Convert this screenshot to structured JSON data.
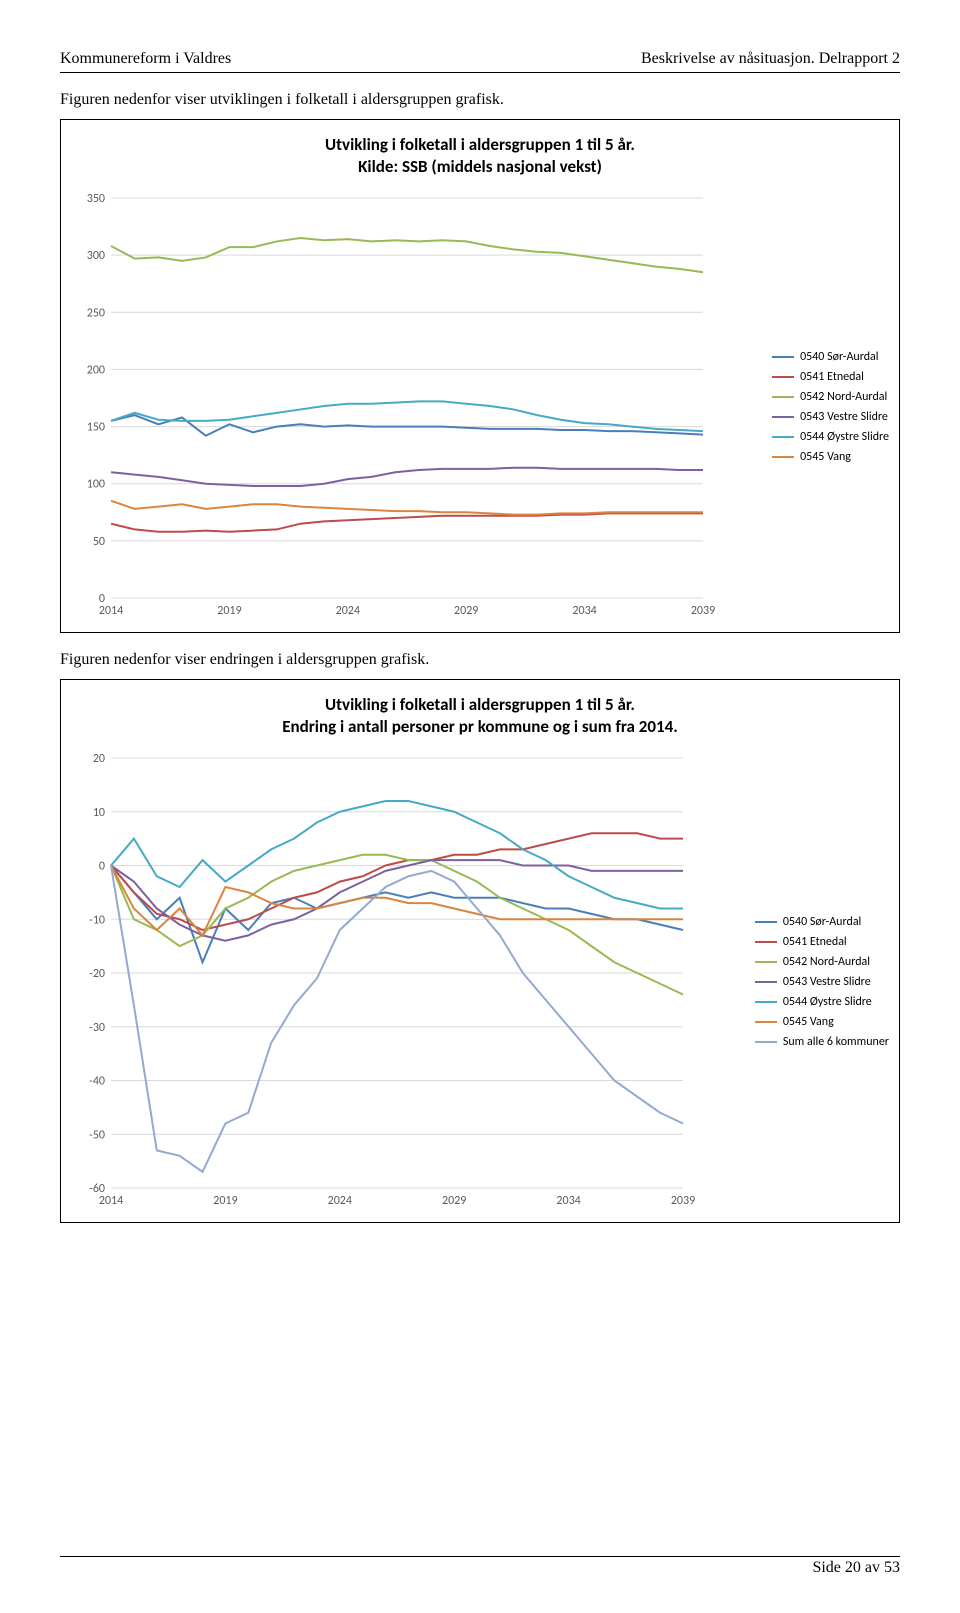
{
  "header": {
    "left": "Kommunereform i Valdres",
    "right": "Beskrivelse av nåsituasjon. Delrapport 2"
  },
  "para1": "Figuren nedenfor viser utviklingen i folketall i aldersgruppen grafisk.",
  "para2": "Figuren nedenfor viser endringen i aldersgruppen grafisk.",
  "footer": "Side 20 av 53",
  "colors": {
    "grid": "#d9d9d9",
    "axis_text": "#595959",
    "sor_aurdal": "#4a7ebb",
    "etnedal": "#be4b48",
    "nord_aurdal": "#98b954",
    "vestre_slidre": "#7d60a0",
    "oystre_slidre": "#46aac5",
    "vang": "#db843d",
    "sum": "#93a9cf",
    "background": "#ffffff"
  },
  "legend_labels": {
    "sor_aurdal": "0540 Sør-Aurdal",
    "etnedal": "0541 Etnedal",
    "nord_aurdal": "0542 Nord-Aurdal",
    "vestre_slidre": "0543 Vestre Slidre",
    "oystre_slidre": "0544 Øystre Slidre",
    "vang": "0545 Vang",
    "sum": "Sum alle 6 kommuner"
  },
  "chart1": {
    "type": "line",
    "title": "Utvikling i folketall i aldersgruppen 1 til 5 år.\nKilde: SSB (middels nasjonal vekst)",
    "x_years": [
      2014,
      2015,
      2016,
      2017,
      2018,
      2019,
      2020,
      2021,
      2022,
      2023,
      2024,
      2025,
      2026,
      2027,
      2028,
      2029,
      2030,
      2031,
      2032,
      2033,
      2034,
      2035,
      2036,
      2037,
      2038,
      2039
    ],
    "x_ticks": [
      2014,
      2019,
      2024,
      2029,
      2034,
      2039
    ],
    "ylim": [
      0,
      350
    ],
    "ytick_step": 50,
    "title_fontsize": 17,
    "label_fontsize": 12,
    "series": {
      "sor_aurdal": [
        155,
        160,
        152,
        158,
        142,
        152,
        145,
        150,
        152,
        150,
        151,
        150,
        150,
        150,
        150,
        149,
        148,
        148,
        148,
        147,
        147,
        146,
        146,
        145,
        144,
        143
      ],
      "etnedal": [
        65,
        60,
        58,
        58,
        59,
        58,
        59,
        60,
        65,
        67,
        68,
        69,
        70,
        71,
        72,
        72,
        72,
        72,
        72,
        73,
        73,
        74,
        74,
        74,
        74,
        74
      ],
      "nord_aurdal": [
        308,
        297,
        298,
        295,
        298,
        307,
        307,
        312,
        315,
        313,
        314,
        312,
        313,
        312,
        313,
        312,
        308,
        305,
        303,
        302,
        299,
        296,
        293,
        290,
        288,
        285
      ],
      "vestre_slidre": [
        110,
        108,
        106,
        103,
        100,
        99,
        98,
        98,
        98,
        100,
        104,
        106,
        110,
        112,
        113,
        113,
        113,
        114,
        114,
        113,
        113,
        113,
        113,
        113,
        112,
        112
      ],
      "oystre_slidre": [
        155,
        162,
        156,
        155,
        155,
        156,
        159,
        162,
        165,
        168,
        170,
        170,
        171,
        172,
        172,
        170,
        168,
        165,
        160,
        156,
        153,
        152,
        150,
        148,
        147,
        146
      ],
      "vang": [
        85,
        78,
        80,
        82,
        78,
        80,
        82,
        82,
        80,
        79,
        78,
        77,
        76,
        76,
        75,
        75,
        74,
        73,
        73,
        74,
        74,
        75,
        75,
        75,
        75,
        75
      ]
    }
  },
  "chart2": {
    "type": "line",
    "title": "Utvikling i folketall i aldersgruppen 1 til 5 år.\nEndring i antall personer pr kommune og i sum fra 2014.",
    "x_years": [
      2014,
      2015,
      2016,
      2017,
      2018,
      2019,
      2020,
      2021,
      2022,
      2023,
      2024,
      2025,
      2026,
      2027,
      2028,
      2029,
      2030,
      2031,
      2032,
      2033,
      2034,
      2035,
      2036,
      2037,
      2038,
      2039
    ],
    "x_ticks": [
      2014,
      2019,
      2024,
      2029,
      2034,
      2039
    ],
    "ylim": [
      -60,
      20
    ],
    "ytick_step": 10,
    "title_fontsize": 17,
    "label_fontsize": 12,
    "series": {
      "sor_aurdal": [
        0,
        -5,
        -10,
        -6,
        -18,
        -8,
        -12,
        -7,
        -6,
        -8,
        -7,
        -6,
        -5,
        -6,
        -5,
        -6,
        -6,
        -6,
        -7,
        -8,
        -8,
        -9,
        -10,
        -10,
        -11,
        -12
      ],
      "etnedal": [
        0,
        -5,
        -9,
        -10,
        -12,
        -11,
        -10,
        -8,
        -6,
        -5,
        -3,
        -2,
        0,
        1,
        1,
        2,
        2,
        3,
        3,
        4,
        5,
        6,
        6,
        6,
        5,
        5
      ],
      "nord_aurdal": [
        0,
        -10,
        -12,
        -15,
        -13,
        -8,
        -6,
        -3,
        -1,
        0,
        1,
        2,
        2,
        1,
        1,
        -1,
        -3,
        -6,
        -8,
        -10,
        -12,
        -15,
        -18,
        -20,
        -22,
        -24
      ],
      "vestre_slidre": [
        0,
        -3,
        -8,
        -11,
        -13,
        -14,
        -13,
        -11,
        -10,
        -8,
        -5,
        -3,
        -1,
        0,
        1,
        1,
        1,
        1,
        0,
        0,
        0,
        -1,
        -1,
        -1,
        -1,
        -1
      ],
      "oystre_slidre": [
        0,
        5,
        -2,
        -4,
        1,
        -3,
        0,
        3,
        5,
        8,
        10,
        11,
        12,
        12,
        11,
        10,
        8,
        6,
        3,
        1,
        -2,
        -4,
        -6,
        -7,
        -8,
        -8
      ],
      "vang": [
        0,
        -8,
        -12,
        -8,
        -13,
        -4,
        -5,
        -7,
        -8,
        -8,
        -7,
        -6,
        -6,
        -7,
        -7,
        -8,
        -9,
        -10,
        -10,
        -10,
        -10,
        -10,
        -10,
        -10,
        -10,
        -10
      ],
      "sum": [
        0,
        -26,
        -53,
        -54,
        -57,
        -48,
        -46,
        -33,
        -26,
        -21,
        -12,
        -8,
        -4,
        -2,
        -1,
        -3,
        -8,
        -13,
        -20,
        -25,
        -30,
        -35,
        -40,
        -43,
        -46,
        -48
      ]
    }
  }
}
